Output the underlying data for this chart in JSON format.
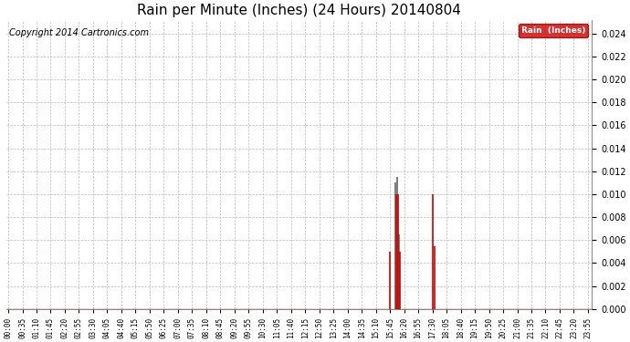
{
  "title": "Rain per Minute (Inches) (24 Hours) 20140804",
  "copyright_text": "Copyright 2014 Cartronics.com",
  "legend_label": "Rain  (Inches)",
  "legend_bg": "#cc0000",
  "legend_text_color": "#ffffff",
  "ylim": [
    0.0,
    0.0252
  ],
  "yticks": [
    0.0,
    0.002,
    0.004,
    0.006,
    0.008,
    0.01,
    0.012,
    0.014,
    0.016,
    0.018,
    0.02,
    0.022,
    0.024
  ],
  "fig_bg_color": "#ffffff",
  "plot_bg_color": "#ffffff",
  "grid_color": "#bbbbbb",
  "baseline_color": "#cc0000",
  "spike_color": "#cc0000",
  "dark_spike_color": "#666666",
  "title_fontsize": 11,
  "copyright_fontsize": 7,
  "tick_fontsize": 5.5,
  "ytick_fontsize": 7,
  "spikes_red": [
    {
      "minute": 945,
      "value": 0.005
    },
    {
      "minute": 960,
      "value": 0.01
    },
    {
      "minute": 965,
      "value": 0.01
    },
    {
      "minute": 970,
      "value": 0.005
    },
    {
      "minute": 1050,
      "value": 0.01
    },
    {
      "minute": 1055,
      "value": 0.0055
    }
  ],
  "spikes_dark": [
    {
      "minute": 958,
      "value": 0.011
    },
    {
      "minute": 963,
      "value": 0.0115
    },
    {
      "minute": 967,
      "value": 0.0065
    }
  ],
  "total_minutes": 1440,
  "tick_interval": 35
}
